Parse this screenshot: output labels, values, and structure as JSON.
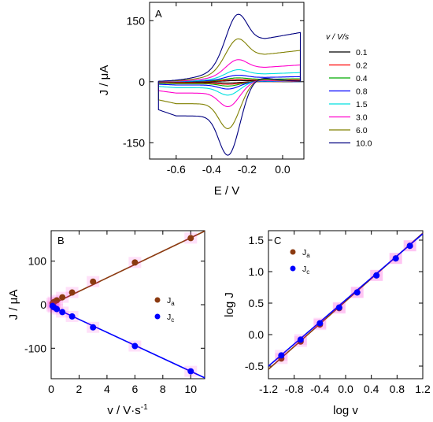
{
  "chart_data": [
    {
      "panel": "A",
      "type": "line",
      "xlabel": "E / V",
      "ylabel": "J / μA",
      "xlim": [
        -0.75,
        0.12
      ],
      "ylim": [
        -190,
        195
      ],
      "xticks": [
        -0.6,
        -0.4,
        -0.2,
        0.0
      ],
      "xtick_labels": [
        "-0.6",
        "-0.4",
        "-0.2",
        "0.0"
      ],
      "yticks": [
        -150,
        0,
        150
      ],
      "ytick_labels": [
        "-150",
        "0",
        "150"
      ],
      "legend_title": "v / V/s",
      "legend_position": "right",
      "cv_shape": {
        "E_start": -0.7,
        "E_end": 0.1,
        "Epa": -0.25,
        "Epc": -0.31,
        "scan_rates": [
          0.1,
          0.2,
          0.4,
          0.8,
          1.5,
          3.0,
          6.0,
          10.0
        ],
        "peak_anodic": [
          3,
          6,
          10,
          17,
          31,
          57,
          110,
          173
        ],
        "peak_cathodic": [
          -3,
          -6,
          -10,
          -17,
          -31,
          -58,
          -110,
          -172
        ],
        "switch_anodic": [
          2,
          4,
          7,
          12,
          21,
          38,
          64,
          100
        ],
        "switch_cathodic": [
          -2,
          -4,
          -7,
          -12,
          -22,
          -38,
          -62,
          -100
        ]
      },
      "series": [
        {
          "name": "0.1",
          "color": "#000000"
        },
        {
          "name": "0.2",
          "color": "#ff0000"
        },
        {
          "name": "0.4",
          "color": "#00aa00"
        },
        {
          "name": "0.8",
          "color": "#0000ff"
        },
        {
          "name": "1.5",
          "color": "#00e0e0"
        },
        {
          "name": "3.0",
          "color": "#ff00cc"
        },
        {
          "name": "6.0",
          "color": "#808000"
        },
        {
          "name": "10.0",
          "color": "#000080"
        }
      ]
    },
    {
      "panel": "B",
      "type": "scatter",
      "xlabel": "v / V·s",
      "xlabel_sup": "-1",
      "ylabel": "J / μA",
      "xlim": [
        0,
        11
      ],
      "ylim": [
        -170,
        170
      ],
      "xticks": [
        0,
        2,
        4,
        6,
        8,
        10
      ],
      "xtick_labels": [
        "0",
        "2",
        "4",
        "6",
        "8",
        "10"
      ],
      "yticks": [
        -100,
        0,
        100
      ],
      "ytick_labels": [
        "-100",
        "0",
        "100"
      ],
      "legend_position": "right",
      "series": [
        {
          "name": "J",
          "sub": "a",
          "color": "#8b3a10",
          "x": [
            0.1,
            0.2,
            0.4,
            0.8,
            1.5,
            3.0,
            6.0,
            10.0
          ],
          "y": [
            3,
            6,
            10,
            17,
            28,
            53,
            97,
            153
          ],
          "fit": [
            [
              0,
              0
            ],
            [
              11,
              169
            ]
          ]
        },
        {
          "name": "J",
          "sub": "c",
          "color": "#0000ff",
          "x": [
            0.1,
            0.2,
            0.4,
            0.8,
            1.5,
            3.0,
            6.0,
            10.0
          ],
          "y": [
            -3,
            -6,
            -10,
            -17,
            -27,
            -52,
            -95,
            -153
          ],
          "fit": [
            [
              0,
              -4
            ],
            [
              11,
              -168
            ]
          ]
        }
      ]
    },
    {
      "panel": "C",
      "type": "scatter",
      "xlabel": "log v",
      "ylabel": "log J",
      "xlim": [
        -1.2,
        1.2
      ],
      "ylim": [
        -0.7,
        1.65
      ],
      "xticks": [
        -1.2,
        -0.8,
        -0.4,
        0.0,
        0.4,
        0.8,
        1.2
      ],
      "xtick_labels": [
        "-1.2",
        "-0.8",
        "-0.4",
        "0.0",
        "0.4",
        "0.8",
        "1.2"
      ],
      "yticks": [
        -0.5,
        0.0,
        0.5,
        1.0,
        1.5
      ],
      "ytick_labels": [
        "-0.5",
        "0.0",
        "0.5",
        "1.0",
        "1.5"
      ],
      "legend_position": "top-left",
      "series": [
        {
          "name": "J",
          "sub": "a",
          "color": "#8b3a10",
          "x": [
            -1.0,
            -0.7,
            -0.4,
            -0.1,
            0.18,
            0.48,
            0.78,
            1.0
          ],
          "y": [
            -0.38,
            -0.11,
            0.16,
            0.42,
            0.67,
            0.94,
            1.21,
            1.41
          ],
          "fit": [
            [
              -1.2,
              -0.55
            ],
            [
              1.2,
              1.61
            ]
          ]
        },
        {
          "name": "J",
          "sub": "c",
          "color": "#0000ff",
          "x": [
            -1.0,
            -0.7,
            -0.4,
            -0.1,
            0.18,
            0.48,
            0.78,
            1.0
          ],
          "y": [
            -0.33,
            -0.08,
            0.18,
            0.43,
            0.67,
            0.94,
            1.21,
            1.41
          ],
          "fit": [
            [
              -1.2,
              -0.5
            ],
            [
              1.2,
              1.6
            ]
          ]
        }
      ]
    }
  ]
}
